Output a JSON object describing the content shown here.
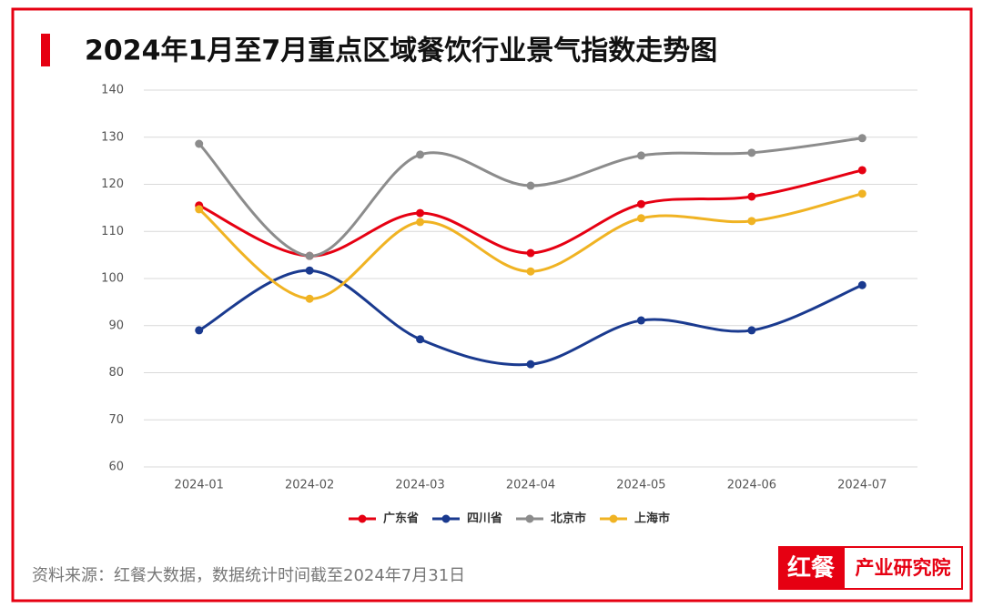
{
  "chart_data": {
    "type": "line",
    "title": "2024年1月至7月重点区域餐饮行业景气指数走势图",
    "categories": [
      "2024-01",
      "2024-02",
      "2024-03",
      "2024-04",
      "2024-05",
      "2024-06",
      "2024-07"
    ],
    "series": [
      {
        "name": "广东省",
        "color": "#e60012",
        "values": [
          115.5,
          104.8,
          113.9,
          105.4,
          115.8,
          117.4,
          123.0
        ]
      },
      {
        "name": "四川省",
        "color": "#1a3a8f",
        "values": [
          89.0,
          101.7,
          87.1,
          81.8,
          91.1,
          89.0,
          98.6
        ]
      },
      {
        "name": "北京市",
        "color": "#8c8c8c",
        "values": [
          128.6,
          104.8,
          126.3,
          119.7,
          126.1,
          126.7,
          129.8
        ]
      },
      {
        "name": "上海市",
        "color": "#f0b323",
        "values": [
          114.7,
          95.7,
          112.0,
          101.5,
          112.8,
          112.2,
          118.0
        ]
      }
    ],
    "ylim": [
      60,
      140
    ],
    "yticks": [
      60,
      70,
      80,
      90,
      100,
      110,
      120,
      130,
      140
    ],
    "grid": true,
    "smooth": true,
    "legend": "bottom"
  },
  "footer": {
    "source": "资料来源：红餐大数据，数据统计时间截至2024年7月31日",
    "brand": "红餐",
    "unit": "产业研究院"
  }
}
